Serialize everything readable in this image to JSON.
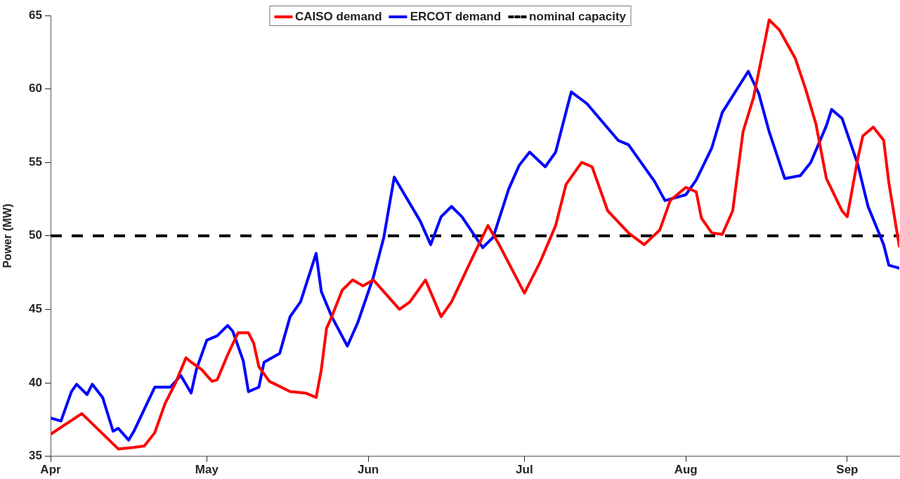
{
  "chart_data": {
    "type": "line",
    "ylabel": "Power (MW)",
    "xlim": [
      "--04-01",
      "--09-11"
    ],
    "xticks": [
      {
        "value": "--04-01",
        "label": "Apr"
      },
      {
        "value": "--05-01",
        "label": "May"
      },
      {
        "value": "--06-01",
        "label": "Jun"
      },
      {
        "value": "--07-01",
        "label": "Jul"
      },
      {
        "value": "--08-01",
        "label": "Aug"
      },
      {
        "value": "--09-01",
        "label": "Sep"
      }
    ],
    "ylim": [
      35,
      65
    ],
    "yticks": [
      35,
      40,
      45,
      50,
      55,
      60,
      65
    ],
    "grid": false,
    "legend": "top",
    "marker": "none",
    "line_style": "solid",
    "series": [
      {
        "name": "CAISO demand",
        "color": "#ff0000",
        "x": [
          "--04-01",
          "--04-07",
          "--04-14",
          "--04-17",
          "--04-19",
          "--04-21",
          "--04-23",
          "--04-25",
          "--04-27",
          "--04-28",
          "--04-30",
          "--05-02",
          "--05-03",
          "--05-05",
          "--05-07",
          "--05-09",
          "--05-10",
          "--05-11",
          "--05-13",
          "--05-17",
          "--05-20",
          "--05-22",
          "--05-23",
          "--05-24",
          "--05-25",
          "--05-27",
          "--05-29",
          "--05-31",
          "--06-02",
          "--06-07",
          "--06-09",
          "--06-12",
          "--06-15",
          "--06-17",
          "--06-21",
          "--06-24",
          "--06-26",
          "--07-01",
          "--07-04",
          "--07-07",
          "--07-09",
          "--07-12",
          "--07-14",
          "--07-17",
          "--07-21",
          "--07-24",
          "--07-27",
          "--07-29",
          "--08-01",
          "--08-03",
          "--08-04",
          "--08-06",
          "--08-08",
          "--08-10",
          "--08-12",
          "--08-14",
          "--08-16",
          "--08-17",
          "--08-19",
          "--08-22",
          "--08-24",
          "--08-26",
          "--08-28",
          "--08-31",
          "--09-01",
          "--09-03",
          "--09-04",
          "--09-06",
          "--09-08",
          "--09-09",
          "--09-11"
        ],
        "values": [
          36.5,
          37.9,
          35.5,
          35.6,
          35.7,
          36.6,
          38.6,
          40.0,
          41.7,
          41.4,
          40.9,
          40.1,
          40.2,
          41.9,
          43.4,
          43.4,
          42.7,
          41.1,
          40.1,
          39.4,
          39.3,
          39.0,
          40.9,
          43.7,
          44.5,
          46.3,
          47.0,
          46.6,
          47.0,
          45.0,
          45.5,
          47.0,
          44.5,
          45.5,
          48.5,
          50.7,
          49.5,
          46.1,
          48.2,
          50.7,
          53.5,
          55.0,
          54.7,
          51.7,
          50.2,
          49.4,
          50.4,
          52.4,
          53.3,
          53.0,
          51.2,
          50.2,
          50.1,
          51.7,
          57.1,
          59.4,
          62.9,
          64.7,
          64.0,
          62.1,
          60.0,
          57.6,
          53.9,
          51.7,
          51.3,
          55.2,
          56.8,
          57.4,
          56.5,
          53.6,
          49.3
        ]
      },
      {
        "name": "ERCOT demand",
        "color": "#0000ff",
        "x": [
          "--04-01",
          "--04-03",
          "--04-05",
          "--04-06",
          "--04-08",
          "--04-09",
          "--04-11",
          "--04-13",
          "--04-14",
          "--04-16",
          "--04-17",
          "--04-19",
          "--04-21",
          "--04-24",
          "--04-26",
          "--04-28",
          "--04-29",
          "--05-01",
          "--05-03",
          "--05-05",
          "--05-06",
          "--05-08",
          "--05-09",
          "--05-11",
          "--05-12",
          "--05-15",
          "--05-17",
          "--05-19",
          "--05-22",
          "--05-23",
          "--05-25",
          "--05-28",
          "--05-30",
          "--06-02",
          "--06-04",
          "--06-06",
          "--06-08",
          "--06-11",
          "--06-13",
          "--06-15",
          "--06-17",
          "--06-19",
          "--06-23",
          "--06-25",
          "--06-28",
          "--06-30",
          "--07-02",
          "--07-05",
          "--07-07",
          "--07-10",
          "--07-13",
          "--07-19",
          "--07-21",
          "--07-26",
          "--07-28",
          "--08-01",
          "--08-03",
          "--08-06",
          "--08-08",
          "--08-13",
          "--08-15",
          "--08-17",
          "--08-20",
          "--08-23",
          "--08-25",
          "--08-28",
          "--08-29",
          "--08-31",
          "--09-03",
          "--09-05",
          "--09-08",
          "--09-09",
          "--09-11"
        ],
        "values": [
          37.6,
          37.4,
          39.4,
          39.9,
          39.2,
          39.9,
          39.0,
          36.7,
          36.9,
          36.1,
          36.7,
          38.2,
          39.7,
          39.7,
          40.5,
          39.3,
          40.9,
          42.9,
          43.2,
          43.9,
          43.5,
          41.5,
          39.4,
          39.7,
          41.4,
          42.0,
          44.5,
          45.5,
          48.8,
          46.2,
          44.5,
          42.5,
          44.1,
          47.2,
          49.9,
          54.0,
          52.8,
          51.0,
          49.4,
          51.3,
          52.0,
          51.3,
          49.2,
          49.9,
          53.2,
          54.8,
          55.7,
          54.7,
          55.7,
          59.8,
          59.0,
          56.5,
          56.2,
          53.7,
          52.4,
          52.8,
          53.8,
          56.0,
          58.4,
          61.2,
          59.7,
          57.1,
          53.9,
          54.1,
          55.0,
          57.5,
          58.6,
          58.0,
          54.9,
          52.0,
          49.4,
          48.0,
          47.8
        ]
      }
    ],
    "ref_lines": [
      {
        "axis": "y",
        "value": 50,
        "label": "nominal capacity",
        "color": "#000000",
        "line_style": "dashed"
      }
    ]
  }
}
